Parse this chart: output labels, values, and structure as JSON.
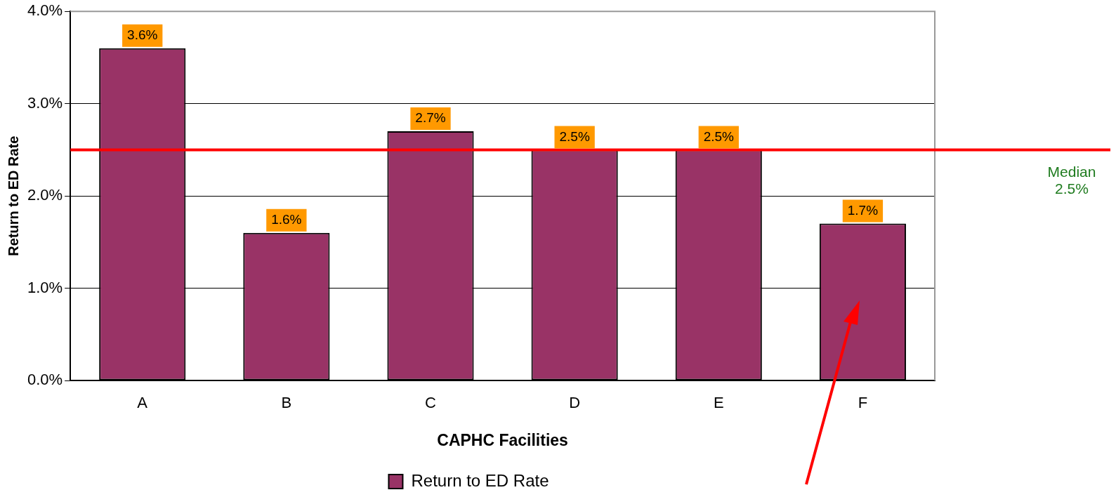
{
  "chart_data": {
    "type": "bar",
    "xlabel": "CAPHC Facilities",
    "ylabel": "Return to ED Rate",
    "categories": [
      "A",
      "B",
      "C",
      "D",
      "E",
      "F"
    ],
    "series": [
      {
        "name": "Return to ED Rate",
        "color": "#993366",
        "values": [
          3.6,
          1.6,
          2.7,
          2.5,
          2.5,
          1.7
        ],
        "value_labels": [
          "3.6%",
          "1.6%",
          "2.7%",
          "2.5%",
          "2.5%",
          "1.7%"
        ]
      }
    ],
    "ylim": [
      0,
      4
    ],
    "yticks": [
      {
        "value": 0,
        "label": "0.0%"
      },
      {
        "value": 1,
        "label": "1.0%"
      },
      {
        "value": 2,
        "label": "2.0%"
      },
      {
        "value": 3,
        "label": "3.0%"
      },
      {
        "value": 4,
        "label": "4.0%"
      }
    ],
    "grid": "y",
    "legend": "bottom",
    "ref_lines": [
      {
        "axis": "y",
        "value": 2.5,
        "label": "Median\n2.5%",
        "color": "#ff0000"
      }
    ]
  }
}
